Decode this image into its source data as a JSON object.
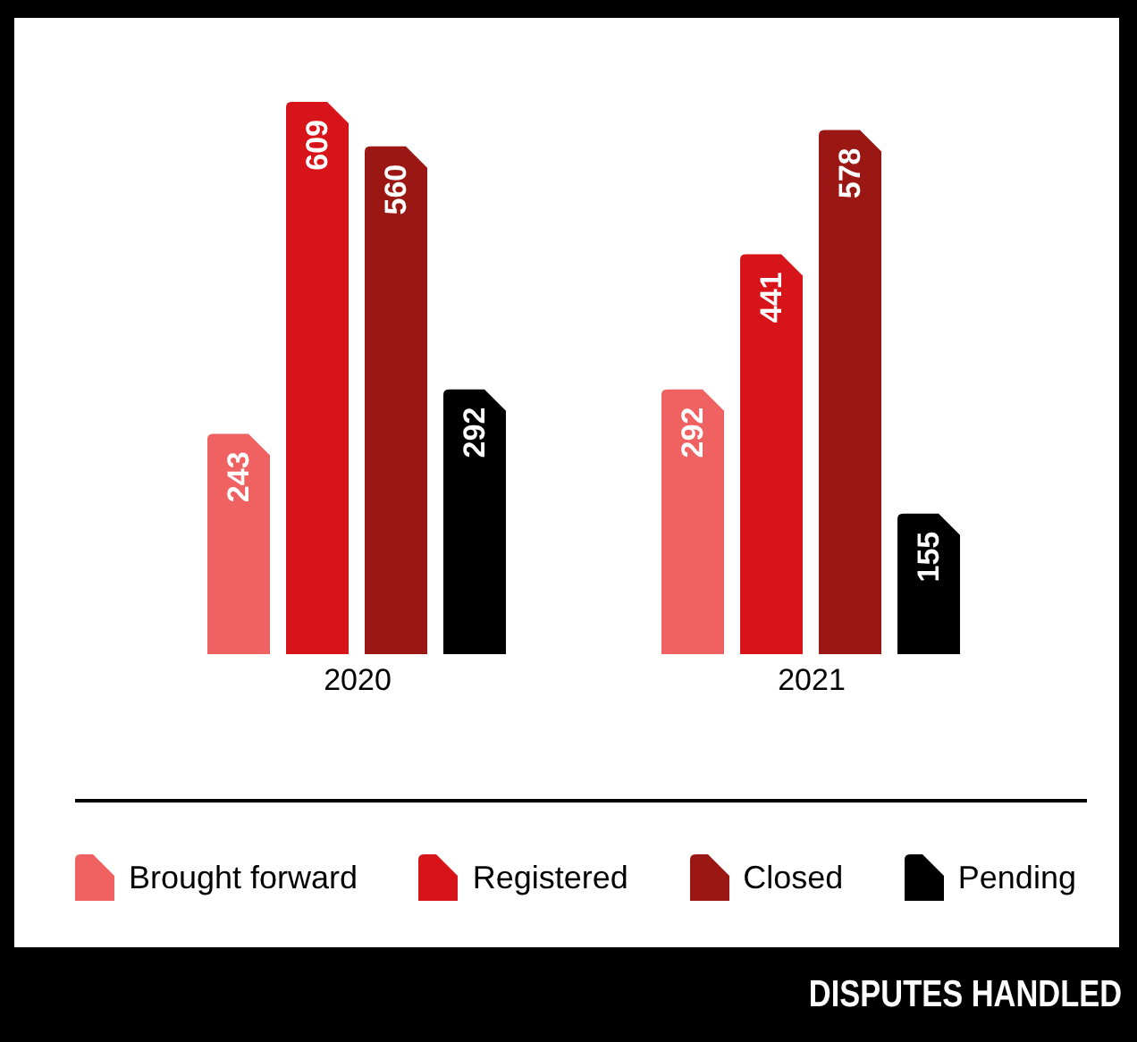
{
  "chart_data": {
    "type": "bar",
    "title": "DISPUTES HANDLED",
    "categories": [
      "2020",
      "2021"
    ],
    "series": [
      {
        "name": "Brought forward",
        "color": "#f06262",
        "values": [
          243,
          292
        ]
      },
      {
        "name": "Registered",
        "color": "#d7141a",
        "values": [
          609,
          441
        ]
      },
      {
        "name": "Closed",
        "color": "#9b1714",
        "values": [
          560,
          578
        ]
      },
      {
        "name": "Pending",
        "color": "#000000",
        "values": [
          292,
          155
        ]
      }
    ],
    "data_labels": true,
    "legend": "bottom",
    "grid": false
  }
}
